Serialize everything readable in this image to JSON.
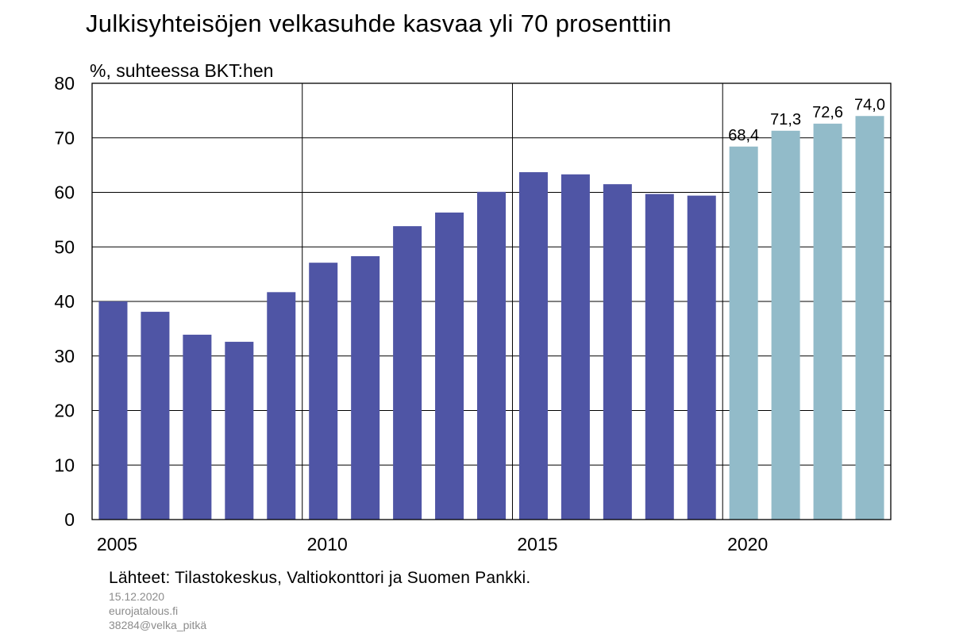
{
  "chart_data": {
    "type": "bar",
    "title": "Julkisyhteisöjen velkasuhde kasvaa yli 70 prosenttiin",
    "ylabel": "%, suhteessa BKT:hen",
    "xlabel": "",
    "ylim": [
      0,
      80
    ],
    "yticks": [
      "0",
      "10",
      "20",
      "30",
      "40",
      "50",
      "60",
      "70",
      "80"
    ],
    "xtick_labels": [
      "2005",
      "2010",
      "2015",
      "2020"
    ],
    "grid": true,
    "colors": {
      "actual": "#4f55a5",
      "forecast": "#92bbc9",
      "grid": "#000000"
    },
    "series": [
      {
        "kind": "actual",
        "years": [
          2005,
          2006,
          2007,
          2008,
          2009,
          2010,
          2011,
          2012,
          2013,
          2014,
          2015,
          2016,
          2017,
          2018,
          2019
        ],
        "values": [
          40.0,
          38.1,
          33.9,
          32.6,
          41.7,
          47.1,
          48.3,
          53.8,
          56.3,
          60.1,
          63.7,
          63.3,
          61.5,
          59.7,
          59.4
        ]
      },
      {
        "kind": "forecast",
        "years": [
          2020,
          2021,
          2022,
          2023
        ],
        "values": [
          68.4,
          71.3,
          72.6,
          74.0
        ],
        "data_labels": [
          "68,4",
          "71,3",
          "72,6",
          "74,0"
        ]
      }
    ]
  },
  "footer": {
    "source": "Lähteet: Tilastokeskus, Valtiokonttori ja Suomen Pankki.",
    "date": "15.12.2020",
    "site": "eurojatalous.fi",
    "code": "38284@velka_pitkä"
  }
}
